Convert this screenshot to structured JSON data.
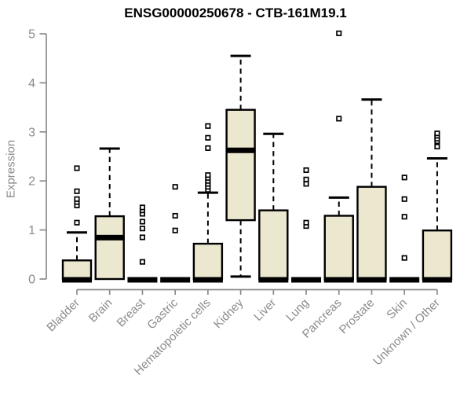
{
  "chart_data": {
    "type": "boxplot",
    "title": "ENSG00000250678 - CTB-161M19.1",
    "ylabel": "Expression",
    "xlabel": "",
    "ylim": [
      0,
      5
    ],
    "yticks": [
      0,
      1,
      2,
      3,
      4,
      5
    ],
    "grid": false,
    "legend": "none",
    "categories": [
      "Bladder",
      "Brain",
      "Breast",
      "Gastric",
      "Hematopoietic cells",
      "Kidney",
      "Liver",
      "Lung",
      "Pancreas",
      "Prostate",
      "Skin",
      "Unknown / Other"
    ],
    "boxes": [
      {
        "category": "Bladder",
        "q1": 0,
        "median": 0,
        "q3": 0.38,
        "whisker_low": 0,
        "whisker_high": 0.95,
        "outliers": [
          1.15,
          1.5,
          1.57,
          1.63,
          1.79,
          2.26
        ]
      },
      {
        "category": "Brain",
        "q1": 0,
        "median": 0.86,
        "q3": 1.28,
        "whisker_low": 0,
        "whisker_high": 2.66,
        "outliers": []
      },
      {
        "category": "Breast",
        "q1": 0,
        "median": 0,
        "q3": 0,
        "whisker_low": 0,
        "whisker_high": 0,
        "outliers": [
          0.35,
          0.85,
          1.03,
          1.17,
          1.33,
          1.4,
          1.46
        ]
      },
      {
        "category": "Gastric",
        "q1": 0,
        "median": 0,
        "q3": 0,
        "whisker_low": 0,
        "whisker_high": 0,
        "outliers": [
          0.99,
          1.29,
          1.88
        ]
      },
      {
        "category": "Hematopoietic cells",
        "q1": 0,
        "median": 0,
        "q3": 0.72,
        "whisker_low": 0,
        "whisker_high": 1.76,
        "outliers": [
          1.82,
          1.88,
          1.94,
          2.0,
          2.06,
          2.12,
          2.67,
          2.88,
          3.12
        ]
      },
      {
        "category": "Kidney",
        "q1": 1.2,
        "median": 2.64,
        "q3": 3.45,
        "whisker_low": 0.05,
        "whisker_high": 4.55,
        "outliers": []
      },
      {
        "category": "Liver",
        "q1": 0,
        "median": 0,
        "q3": 1.4,
        "whisker_low": 0,
        "whisker_high": 2.96,
        "outliers": []
      },
      {
        "category": "Lung",
        "q1": 0,
        "median": 0,
        "q3": 0,
        "whisker_low": 0,
        "whisker_high": 0,
        "outliers": [
          1.08,
          1.15,
          1.94,
          2.03,
          2.22
        ]
      },
      {
        "category": "Pancreas",
        "q1": 0,
        "median": 0,
        "q3": 1.29,
        "whisker_low": 0,
        "whisker_high": 1.66,
        "outliers": [
          3.27,
          5.01
        ]
      },
      {
        "category": "Prostate",
        "q1": 0,
        "median": 0,
        "q3": 1.88,
        "whisker_low": 0,
        "whisker_high": 3.66,
        "outliers": []
      },
      {
        "category": "Skin",
        "q1": 0,
        "median": 0,
        "q3": 0,
        "whisker_low": 0,
        "whisker_high": 0,
        "outliers": [
          0.43,
          1.27,
          1.63,
          2.07
        ]
      },
      {
        "category": "Unknown / Other",
        "q1": 0,
        "median": 0,
        "q3": 0.99,
        "whisker_low": 0,
        "whisker_high": 2.46,
        "outliers": [
          2.7,
          2.81,
          2.86,
          2.92,
          2.97
        ]
      }
    ],
    "colors": {
      "box_fill": "#ece7cf",
      "box_border": "#000000",
      "median": "#000000",
      "whisker": "#000000",
      "outlier_stroke": "#000000",
      "axis": "#8b8b8b",
      "title": "#000000",
      "background": "#ffffff"
    }
  }
}
